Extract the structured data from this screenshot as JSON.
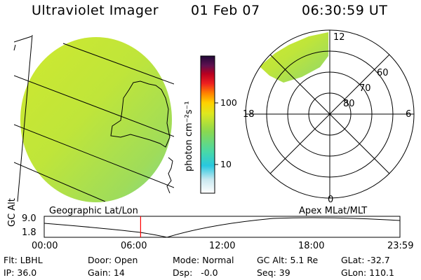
{
  "header": {
    "title": "Ultraviolet Imager",
    "date": "01 Feb 07",
    "time": "06:30:59 UT"
  },
  "colorbar": {
    "unit_label": "photon cm⁻²s⁻¹",
    "ticks": [
      "100",
      "10"
    ]
  },
  "geo_panel": {
    "label": "Geographic Lat/Lon"
  },
  "polar_panel": {
    "label": "Apex MLat/MLT",
    "clock_labels": {
      "top": "12",
      "left": "18",
      "right": "6",
      "bottom": "0"
    },
    "lat_labels": [
      "60",
      "70",
      "80"
    ]
  },
  "timeline": {
    "ylabel": "GC Alt",
    "yticks": [
      "9.0",
      "1.8"
    ],
    "xticks": [
      "00:00",
      "06:00",
      "12:00",
      "18:00",
      "23:59"
    ],
    "current_time_fraction": 0.271
  },
  "status": {
    "flt": "Flt: LBHL",
    "ip": "IP: 36.0",
    "door": "Door: Open",
    "gain": "Gain: 14",
    "mode": "Mode: Normal",
    "dsp": "Dsp:   -0.0",
    "gc_alt": "GC Alt: 5.1 Re",
    "seq": "Seq: 39",
    "glat": "GLat: -32.7",
    "glon": "GLon: 110.1"
  },
  "colors": {
    "image_fill": "#c8e834",
    "image_fill_dark": "#a9d946",
    "image_cyan": "#74d6a6",
    "marker": "#ff0000"
  }
}
